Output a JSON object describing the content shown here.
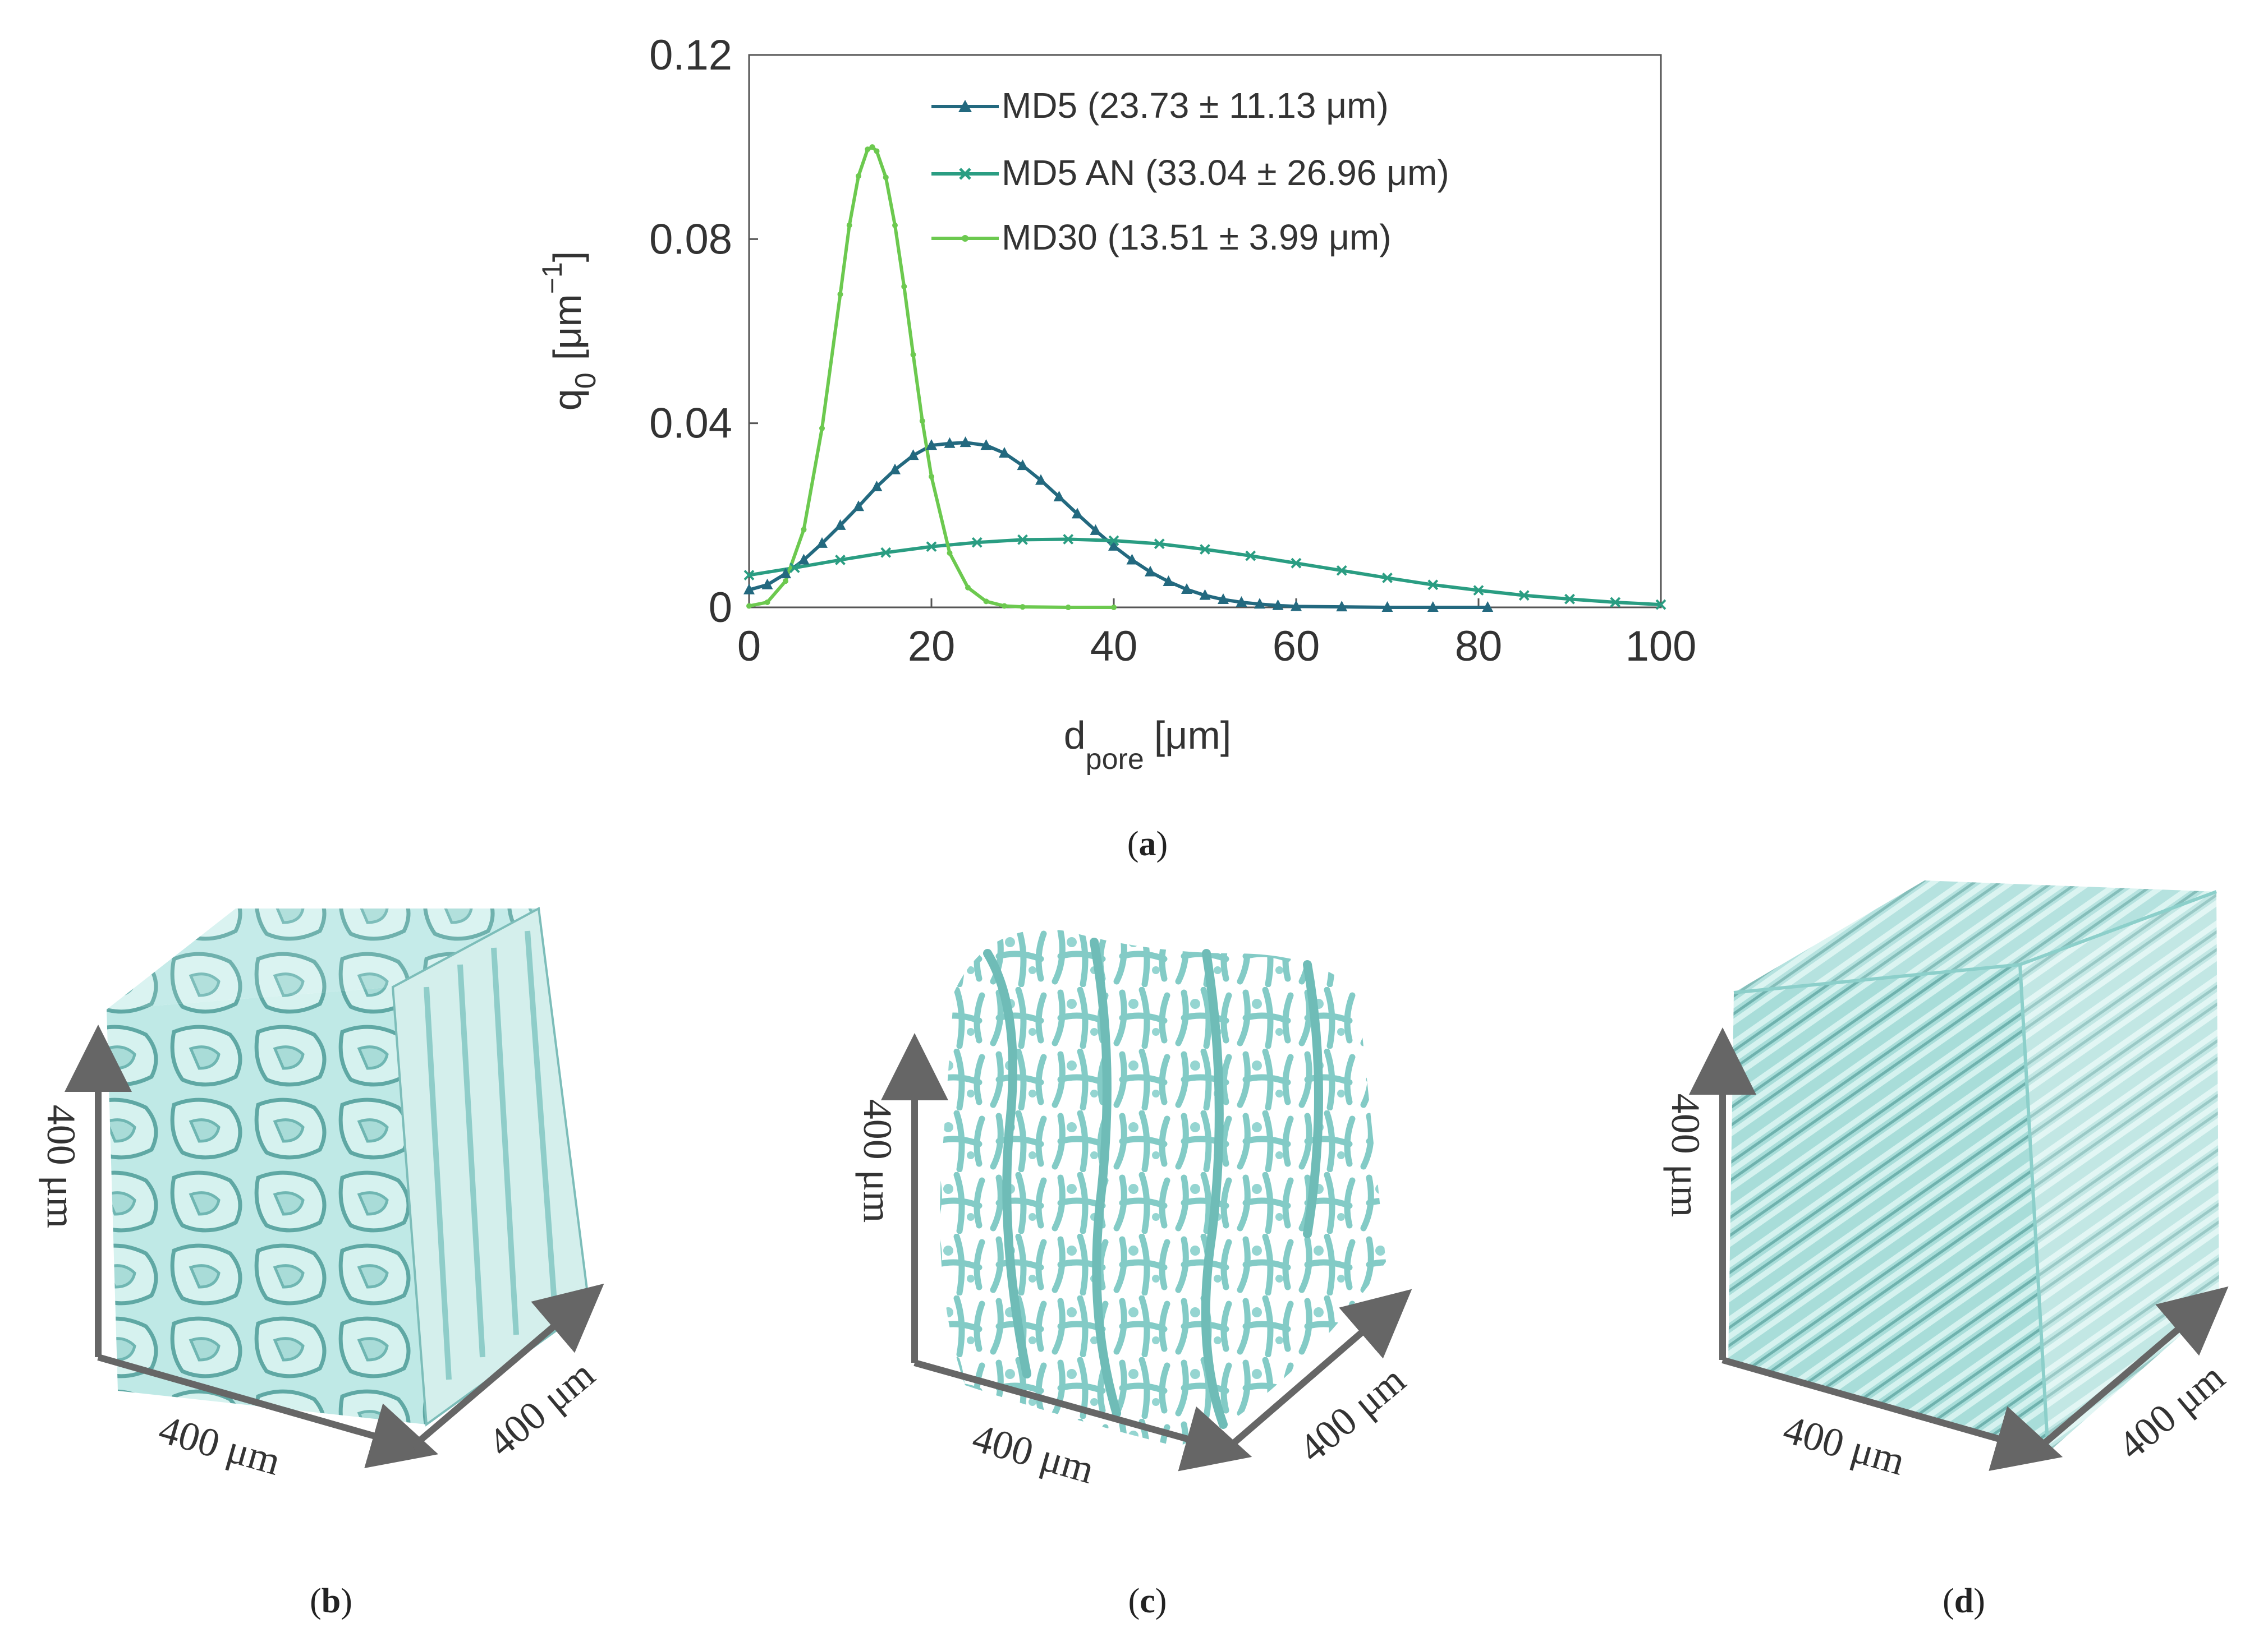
{
  "chart_data": {
    "type": "line",
    "panel_label": "a",
    "xlabel_main": "d",
    "xlabel_sub": "pore",
    "xlabel_unit": "[μm]",
    "ylabel_main": "q",
    "ylabel_sub": "0",
    "ylabel_unit": "[μm",
    "ylabel_exp": "−1",
    "ylabel_close": "]",
    "xlim": [
      0,
      100
    ],
    "ylim": [
      0,
      0.12
    ],
    "xticks": [
      0,
      20,
      40,
      60,
      80,
      100
    ],
    "xtick_labels": [
      "0",
      "20",
      "40",
      "60",
      "80",
      "100"
    ],
    "yticks": [
      0,
      0.04,
      0.08,
      0.12
    ],
    "ytick_labels": [
      "0",
      "0.04",
      "0.08",
      "0.12"
    ],
    "legend_position": "top-right",
    "series": [
      {
        "name": "MD5 (23.73 ± 11.13 μm)",
        "marker": "triangle",
        "color": "#23697f",
        "x": [
          0,
          2,
          4,
          6,
          8,
          10,
          12,
          14,
          16,
          18,
          20,
          22,
          23.73,
          26,
          28,
          30,
          32,
          34,
          36,
          38,
          40,
          42,
          44,
          46,
          48,
          50,
          52,
          54,
          56,
          58,
          60,
          65,
          70,
          75,
          81
        ],
        "values": [
          0.0038,
          0.0049,
          0.0073,
          0.0103,
          0.0139,
          0.0178,
          0.0219,
          0.0262,
          0.0299,
          0.033,
          0.0352,
          0.0356,
          0.0358,
          0.0352,
          0.0335,
          0.0308,
          0.0276,
          0.024,
          0.0203,
          0.0167,
          0.0133,
          0.0103,
          0.0077,
          0.0056,
          0.0039,
          0.0026,
          0.0017,
          0.0011,
          0.0007,
          0.0004,
          0.0002,
          0.0001,
          0.0,
          0.0,
          0.0
        ]
      },
      {
        "name": "MD5 AN (33.04 ± 26.96 μm)",
        "marker": "x",
        "color": "#2a9d82",
        "x": [
          0,
          5,
          10,
          15,
          20,
          25,
          30,
          35,
          40,
          45,
          50,
          55,
          60,
          65,
          70,
          75,
          80,
          85,
          90,
          95,
          100
        ],
        "values": [
          0.007,
          0.0086,
          0.0103,
          0.0119,
          0.0132,
          0.0141,
          0.0147,
          0.0148,
          0.0145,
          0.0138,
          0.0126,
          0.0112,
          0.0096,
          0.008,
          0.0064,
          0.0049,
          0.0037,
          0.0026,
          0.0018,
          0.0011,
          0.0006
        ]
      },
      {
        "name": "MD30 (13.51 ± 3.99 μm)",
        "marker": "dot",
        "color": "#6cc94f",
        "x": [
          0,
          2,
          4,
          6,
          8,
          10,
          11,
          12,
          13,
          13.51,
          14,
          15,
          16,
          17,
          18,
          19,
          20,
          22,
          24,
          26,
          28,
          30,
          35,
          40
        ],
        "values": [
          0.0003,
          0.0011,
          0.0057,
          0.0169,
          0.0389,
          0.068,
          0.083,
          0.0937,
          0.0995,
          0.1,
          0.0991,
          0.0934,
          0.083,
          0.0697,
          0.0549,
          0.0405,
          0.0284,
          0.0118,
          0.0043,
          0.0013,
          0.0003,
          0.0001,
          0.0,
          0.0
        ]
      }
    ]
  },
  "panels": {
    "b": {
      "label": "b",
      "axis_vertical": "400 μm",
      "axis_front": "400 μm",
      "axis_depth": "400 μm"
    },
    "c": {
      "label": "c",
      "axis_vertical": "400 μm",
      "axis_front": "400 μm",
      "axis_depth": "400 μm"
    },
    "d": {
      "label": "d",
      "axis_vertical": "400 μm",
      "axis_front": "400 μm",
      "axis_depth": "400 μm"
    }
  },
  "colors": {
    "axis": "#444444",
    "volume_light": "#bfe9e6",
    "volume_mid": "#8fd3cf",
    "volume_dark": "#5fa8a4",
    "arrow": "#666666"
  }
}
